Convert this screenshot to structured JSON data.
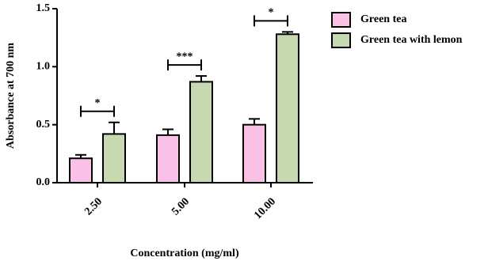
{
  "chart_data": {
    "type": "bar",
    "x_label": "Concentration (mg/ml)",
    "y_label": "Absorbance at 700 nm",
    "categories": [
      "2.50",
      "5.00",
      "10.00"
    ],
    "series": [
      {
        "name": "Green tea",
        "color": "#fbc0e6",
        "values": [
          0.21,
          0.41,
          0.5
        ],
        "errors": [
          0.03,
          0.05,
          0.05
        ]
      },
      {
        "name": "Green tea with lemon",
        "color": "#c6d9b1",
        "values": [
          0.42,
          0.87,
          1.28
        ],
        "errors": [
          0.1,
          0.05,
          0.02
        ]
      }
    ],
    "significance": [
      "*",
      "***",
      "*"
    ],
    "ylim": [
      0,
      1.5
    ],
    "yticks": [
      {
        "value": 0,
        "label": "0.0"
      },
      {
        "value": 0.5,
        "label": "0.5"
      },
      {
        "value": 1.0,
        "label": "1.0"
      },
      {
        "value": 1.5,
        "label": "1.5"
      }
    ],
    "legend": "top-right"
  }
}
